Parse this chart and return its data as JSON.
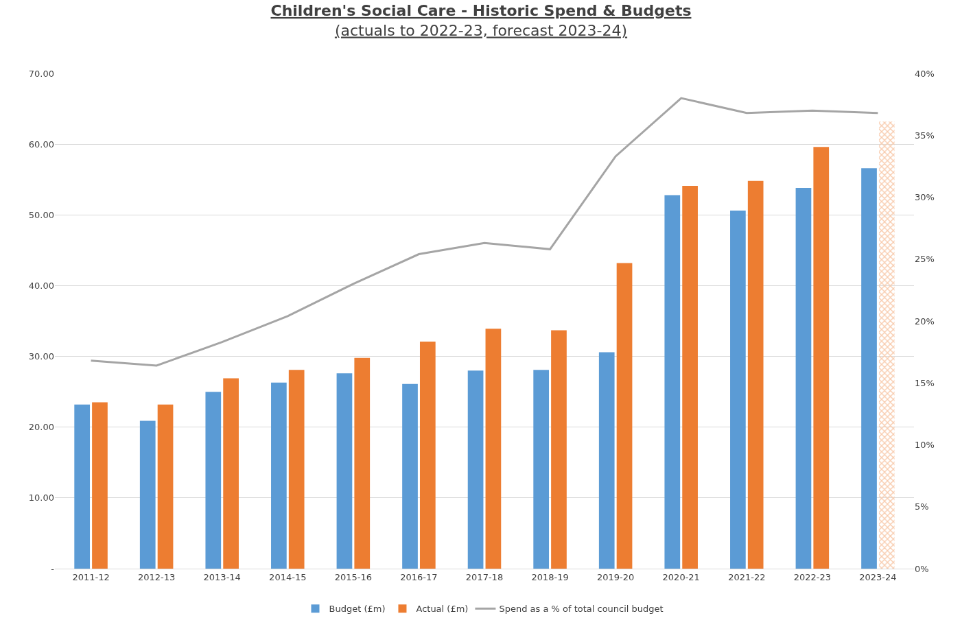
{
  "chart_data": {
    "type": "bar",
    "title": "Children's Social Care - Historic Spend & Budgets",
    "subtitle": "(actuals to 2022-23, forecast 2023-24)",
    "categories": [
      "2011-12",
      "2012-13",
      "2013-14",
      "2014-15",
      "2015-16",
      "2016-17",
      "2017-18",
      "2018-19",
      "2019-20",
      "2020-21",
      "2021-22",
      "2022-23",
      "2023-24"
    ],
    "series": [
      {
        "name": "Budget (£m)",
        "color": "#5b9bd5",
        "values": [
          23.2,
          20.9,
          25.0,
          26.3,
          27.6,
          26.1,
          28.0,
          28.1,
          30.6,
          52.8,
          50.6,
          53.8,
          56.6
        ]
      },
      {
        "name": "Actual (£m)",
        "color": "#ed7d31",
        "colors": [
          "#ed7d31",
          "#ed7d31",
          "#ed7d31",
          "#ed7d31",
          "#ed7d31",
          "#ed7d31",
          "#ed7d31",
          "#ed7d31",
          "#ed7d31",
          "#ed7d31",
          "#ed7d31",
          "#ed7d31",
          "#f8cbad"
        ],
        "values": [
          23.5,
          23.2,
          26.9,
          28.1,
          29.8,
          32.1,
          33.9,
          33.7,
          43.2,
          54.1,
          54.8,
          59.6,
          63.2
        ]
      },
      {
        "name": "Spend as a % of total council budget",
        "type": "line",
        "axis": "y2",
        "color": "#a5a5a5",
        "values": [
          16.8,
          16.4,
          18.3,
          20.4,
          23.0,
          25.4,
          26.3,
          25.8,
          33.3,
          38.0,
          36.8,
          37.0,
          36.8
        ]
      }
    ],
    "ylim": [
      0,
      70
    ],
    "yticks": [
      {
        "value": 0,
        "label": "-"
      },
      {
        "value": 10,
        "label": "10.00"
      },
      {
        "value": 20,
        "label": "20.00"
      },
      {
        "value": 30,
        "label": "30.00"
      },
      {
        "value": 40,
        "label": "40.00"
      },
      {
        "value": 50,
        "label": "50.00"
      },
      {
        "value": 60,
        "label": "60.00"
      },
      {
        "value": 70,
        "label": "70.00"
      }
    ],
    "y2lim": [
      0,
      40
    ],
    "y2ticks": [
      {
        "value": 0,
        "label": "0%"
      },
      {
        "value": 5,
        "label": "5%"
      },
      {
        "value": 10,
        "label": "10%"
      },
      {
        "value": 15,
        "label": "15%"
      },
      {
        "value": 20,
        "label": "20%"
      },
      {
        "value": 25,
        "label": "25%"
      },
      {
        "value": 30,
        "label": "30%"
      },
      {
        "value": 35,
        "label": "35%"
      },
      {
        "value": 40,
        "label": "40%"
      }
    ],
    "grid": "y",
    "legend": "bottom",
    "marker": "none",
    "line_style": "solid"
  }
}
